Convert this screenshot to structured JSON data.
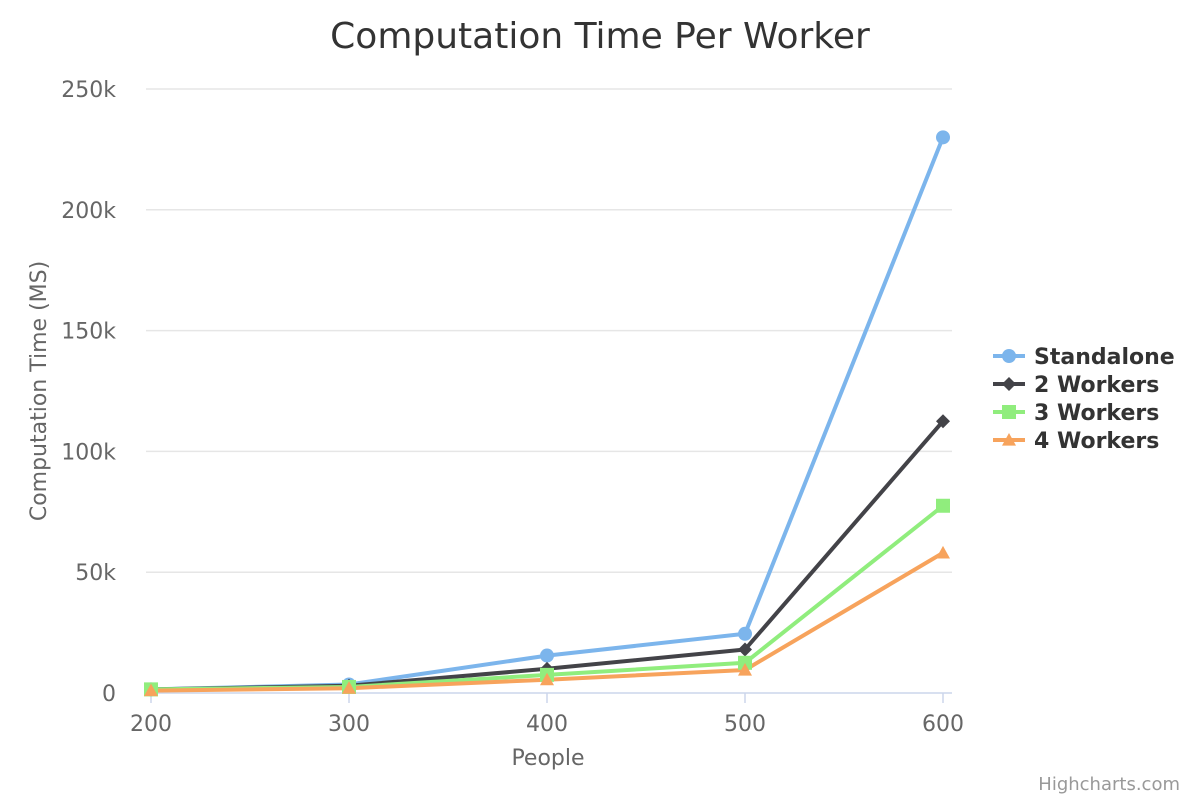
{
  "chart_data": {
    "type": "line",
    "title": "Computation Time Per Worker",
    "xlabel": "People",
    "ylabel": "Computation Time (MS)",
    "x": [
      200,
      300,
      400,
      500,
      600
    ],
    "ylim": [
      0,
      250000
    ],
    "yticks": [
      0,
      50000,
      100000,
      150000,
      200000,
      250000
    ],
    "ytick_labels": [
      "0",
      "50k",
      "100k",
      "150k",
      "200k",
      "250k"
    ],
    "grid": true,
    "legend": "right",
    "series": [
      {
        "name": "Standalone",
        "color": "#7cb5ec",
        "marker": "circle",
        "values": [
          1500,
          3500,
          15500,
          24500,
          230000
        ]
      },
      {
        "name": "2 Workers",
        "color": "#434348",
        "marker": "diamond",
        "values": [
          1500,
          3000,
          10000,
          18000,
          112500
        ]
      },
      {
        "name": "3 Workers",
        "color": "#90ed7d",
        "marker": "square",
        "values": [
          1500,
          2500,
          7500,
          12500,
          77500
        ]
      },
      {
        "name": "4 Workers",
        "color": "#f7a35c",
        "marker": "triangle",
        "values": [
          1000,
          2000,
          5500,
          9500,
          58000
        ]
      }
    ]
  },
  "credits": "Highcharts.com"
}
